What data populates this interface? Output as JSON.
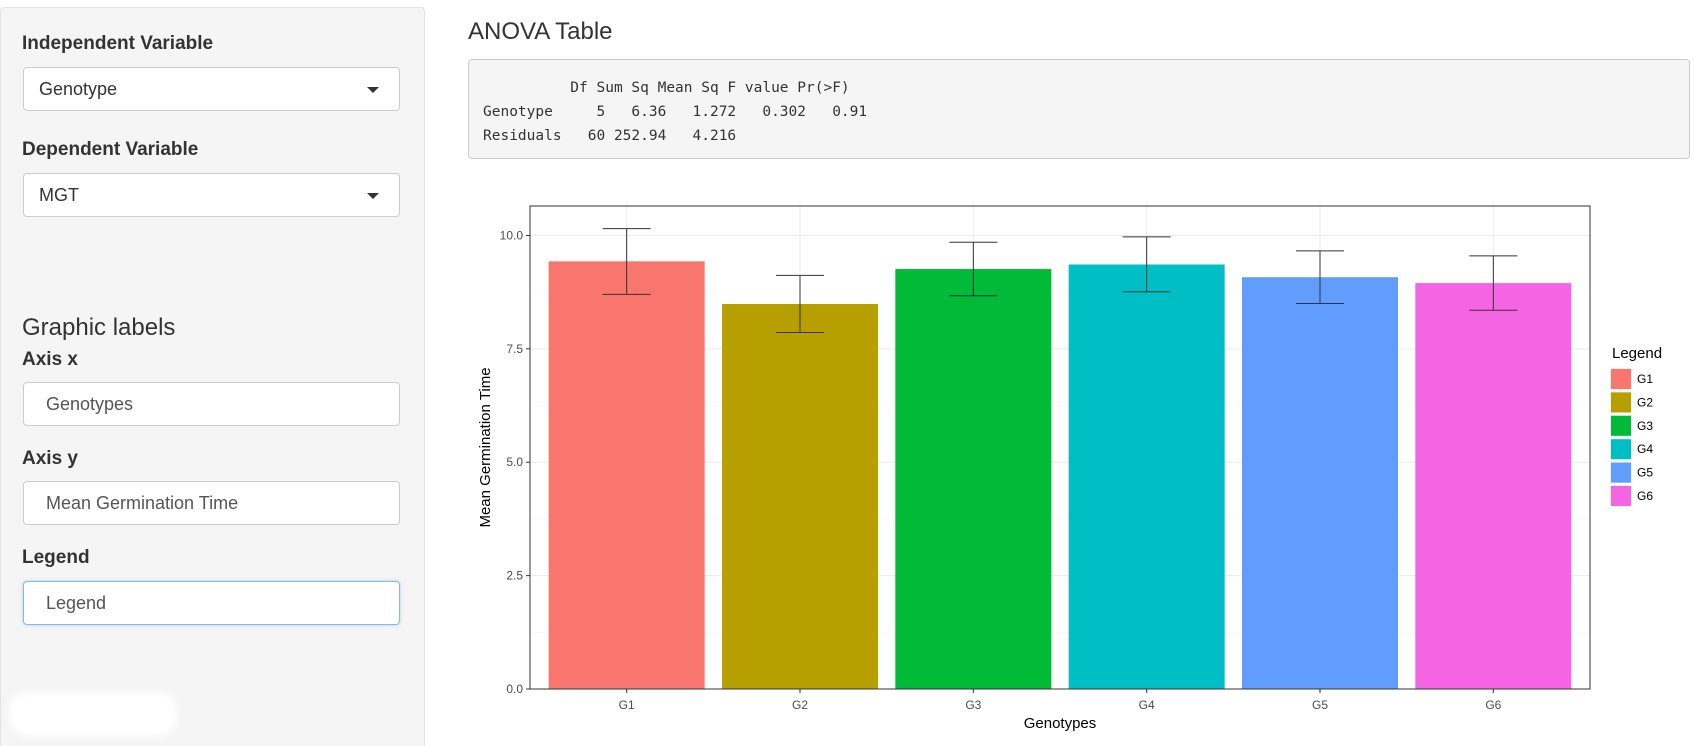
{
  "sidebar": {
    "independent_label": "Independent Variable",
    "independent_value": "Genotype",
    "dependent_label": "Dependent Variable",
    "dependent_value": "MGT",
    "graphic_labels_heading": "Graphic labels",
    "axis_x_label": "Axis x",
    "axis_x_value": "Genotypes",
    "axis_y_label": "Axis y",
    "axis_y_value": "Mean Germination Time",
    "legend_label": "Legend",
    "legend_value": "Legend"
  },
  "anova": {
    "title": "ANOVA Table",
    "header": "          Df Sum Sq Mean Sq F value Pr(>F)",
    "rows": [
      "Genotype     5   6.36   1.272   0.302   0.91",
      "Residuals   60 252.94   4.216"
    ]
  },
  "chart_data": {
    "type": "bar",
    "categories": [
      "G1",
      "G2",
      "G3",
      "G4",
      "G5",
      "G6"
    ],
    "values": [
      9.43,
      8.49,
      9.26,
      9.36,
      9.08,
      8.95
    ],
    "error_low": [
      8.7,
      7.86,
      8.67,
      8.76,
      8.5,
      8.35
    ],
    "error_high": [
      10.15,
      9.12,
      9.85,
      9.97,
      9.66,
      9.55
    ],
    "colors": [
      "#F8766D",
      "#B79F00",
      "#00BA38",
      "#00BFC4",
      "#619CFF",
      "#F564E3"
    ],
    "xlabel": "Genotypes",
    "ylabel": "Mean Germination Time",
    "yticks": [
      "0.0",
      "2.5",
      "5.0",
      "7.5",
      "10.0"
    ],
    "ylim": [
      0,
      10.65
    ],
    "grid": true,
    "legend_title": "Legend",
    "legend_position": "right"
  }
}
